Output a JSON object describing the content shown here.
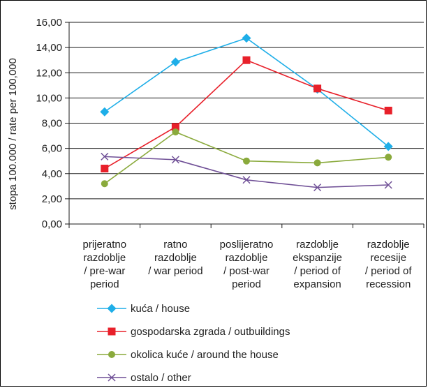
{
  "chart_data": {
    "type": "line",
    "title": "",
    "ylabel": "stopa 100.000 / rate per 100,000",
    "xlabel": "",
    "ylim": [
      0,
      16
    ],
    "y_ticks": [
      "0,00",
      "2,00",
      "4,00",
      "6,00",
      "8,00",
      "10,00",
      "12,00",
      "14,00",
      "16,00"
    ],
    "y_tick_values": [
      0,
      2,
      4,
      6,
      8,
      10,
      12,
      14,
      16
    ],
    "grid": true,
    "legend_position": "bottom",
    "categories": [
      [
        "prijeratno",
        "razdoblje",
        "/ pre-war",
        "period"
      ],
      [
        "ratno",
        "razdoblje",
        "/ war period"
      ],
      [
        "poslijeratno",
        "razdoblje",
        "/ post-war",
        "period"
      ],
      [
        "razdoblje",
        "ekspanzije",
        "/ period of",
        "expansion"
      ],
      [
        "razdoblje",
        "recesije",
        "/ period of",
        "recession"
      ]
    ],
    "series": [
      {
        "name": "kuća / house",
        "color": "#1eaee8",
        "marker": "diamond",
        "values": [
          8.9,
          12.85,
          14.75,
          10.7,
          6.15
        ]
      },
      {
        "name": "gospodarska zgrada / outbuildings",
        "color": "#e8202a",
        "marker": "square",
        "values": [
          4.4,
          7.7,
          13.0,
          10.75,
          9.0
        ]
      },
      {
        "name": "okolica kuće / around the house",
        "color": "#8aaa3c",
        "marker": "circle",
        "values": [
          3.2,
          7.3,
          5.0,
          4.85,
          5.3
        ]
      },
      {
        "name": "ostalo / other",
        "color": "#6f4f96",
        "marker": "x",
        "values": [
          5.35,
          5.1,
          3.5,
          2.9,
          3.1
        ]
      }
    ]
  }
}
